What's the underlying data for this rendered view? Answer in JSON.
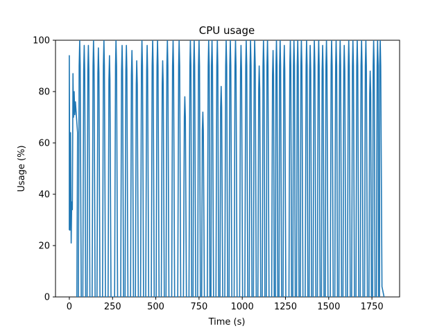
{
  "chart_data": {
    "type": "line",
    "title": "CPU usage",
    "xlabel": "Time (s)",
    "ylabel": "Usage (%)",
    "xlim": [
      -80,
      1910
    ],
    "ylim": [
      0,
      100
    ],
    "x_ticks": [
      0,
      250,
      500,
      750,
      1000,
      1250,
      1500,
      1750
    ],
    "y_ticks": [
      0,
      20,
      40,
      60,
      80,
      100
    ],
    "grid": false,
    "line_color": "#1f77b4",
    "series": [
      {
        "peaks_x": [
          0,
          7,
          14,
          21,
          28,
          35,
          60,
          86,
          110,
          140,
          168,
          200,
          232,
          270,
          305,
          330,
          362,
          390,
          420,
          450,
          482,
          510,
          540,
          567,
          600,
          635,
          668,
          700,
          722,
          750,
          772,
          806,
          825,
          856,
          878,
          907,
          931,
          961,
          993,
          1023,
          1048,
          1072,
          1098,
          1123,
          1146,
          1178,
          1198,
          1219,
          1243,
          1278,
          1299,
          1321,
          1342,
          1372,
          1393,
          1417,
          1442,
          1465,
          1487,
          1517,
          1543,
          1566,
          1590,
          1616,
          1640,
          1665,
          1690,
          1715,
          1740,
          1760,
          1783,
          1798
        ],
        "peaks_y": [
          94,
          64,
          37,
          87,
          80,
          76,
          100,
          98,
          98,
          100,
          97,
          100,
          94,
          100,
          98,
          98,
          96,
          92,
          100,
          98,
          100,
          100,
          92,
          100,
          100,
          100,
          78,
          100,
          100,
          100,
          72,
          100,
          100,
          100,
          82,
          100,
          100,
          100,
          98,
          100,
          100,
          100,
          90,
          100,
          100,
          96,
          100,
          100,
          98,
          100,
          100,
          100,
          100,
          100,
          98,
          100,
          100,
          98,
          100,
          100,
          100,
          100,
          98,
          100,
          100,
          100,
          100,
          100,
          88,
          100,
          100,
          100
        ],
        "troughs_y": [
          26,
          21,
          34,
          70,
          71,
          64
        ]
      }
    ],
    "start_x": 0,
    "end_x": 1820
  }
}
